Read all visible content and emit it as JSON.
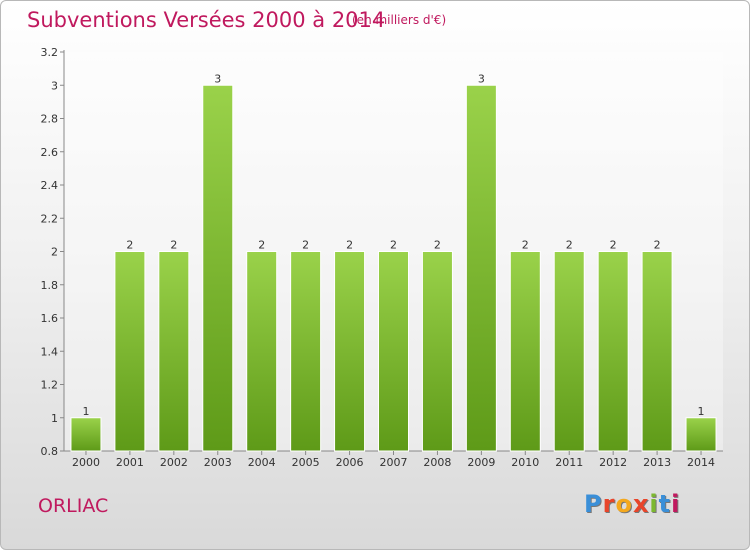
{
  "title": "Subventions Versées 2000 à 2014",
  "subtitle": "(en milliers d'€)",
  "commune": "ORLIAC",
  "logo": {
    "letters": [
      "P",
      "r",
      "o",
      "x",
      "i",
      "t",
      "i"
    ],
    "colors": [
      "#3a8fd8",
      "#e8452a",
      "#f4a81d",
      "#e8452a",
      "#7cb82f",
      "#3a8fd8",
      "#c0195e"
    ]
  },
  "colors": {
    "bar": "#7fbf2e",
    "title": "#c0195e"
  },
  "chart_data": {
    "type": "bar",
    "title": "Subventions Versées 2000 à 2014",
    "subtitle": "(en milliers d'€)",
    "categories": [
      "2000",
      "2001",
      "2002",
      "2003",
      "2004",
      "2005",
      "2006",
      "2007",
      "2008",
      "2009",
      "2010",
      "2011",
      "2012",
      "2013",
      "2014"
    ],
    "values": [
      1,
      2,
      2,
      3,
      2,
      2,
      2,
      2,
      2,
      3,
      2,
      2,
      2,
      2,
      1
    ],
    "value_labels": [
      "1",
      "2",
      "2",
      "3",
      "2",
      "2",
      "2",
      "2",
      "2",
      "3",
      "2",
      "2",
      "2",
      "2",
      "1"
    ],
    "ylim": [
      0.8,
      3.2
    ],
    "yticks": [
      0.8,
      1,
      1.2,
      1.4,
      1.6,
      1.8,
      2,
      2.2,
      2.4,
      2.6,
      2.8,
      3,
      3.2
    ],
    "ytick_labels": [
      "0.8",
      "1",
      "1.2",
      "1.4",
      "1.6",
      "1.8",
      "2",
      "2.2",
      "2.4",
      "2.6",
      "2.8",
      "3",
      "3.2"
    ],
    "grid": false
  }
}
